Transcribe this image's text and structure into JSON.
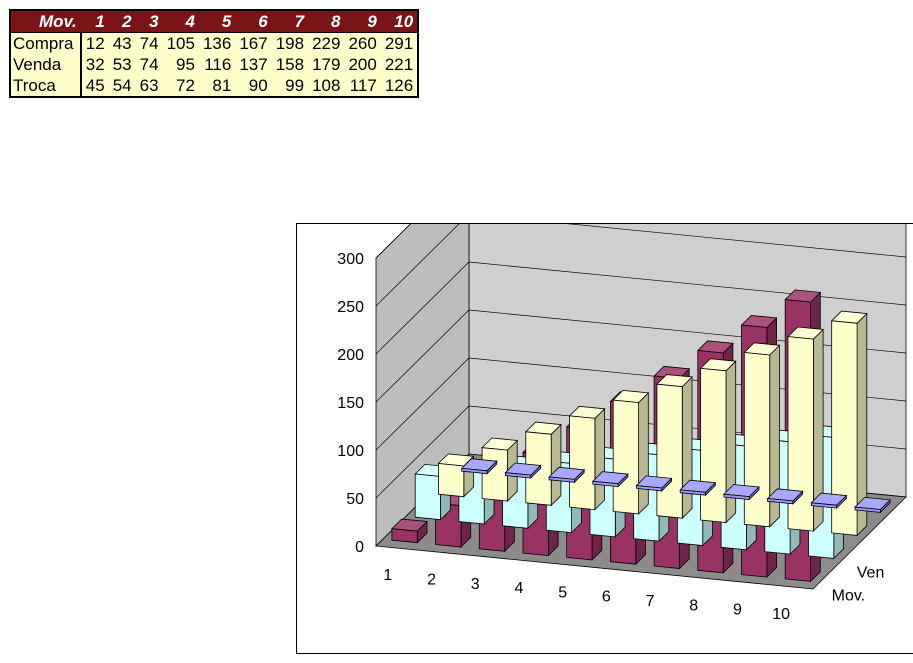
{
  "table": {
    "header_label": "Mov.",
    "columns": [
      "1",
      "2",
      "3",
      "4",
      "5",
      "6",
      "7",
      "8",
      "9",
      "10"
    ],
    "rows": [
      {
        "label": "Compra",
        "values": [
          12,
          43,
          74,
          105,
          136,
          167,
          198,
          229,
          260,
          291
        ]
      },
      {
        "label": "Venda",
        "values": [
          32,
          53,
          74,
          95,
          116,
          137,
          158,
          179,
          200,
          221
        ]
      },
      {
        "label": "Troca",
        "values": [
          45,
          54,
          63,
          72,
          81,
          90,
          99,
          108,
          117,
          126
        ]
      }
    ]
  },
  "chart_data": {
    "type": "bar",
    "style": "3d-column",
    "categories": [
      "1",
      "2",
      "3",
      "4",
      "5",
      "6",
      "7",
      "8",
      "9",
      "10"
    ],
    "series": [
      {
        "name": "Mov.",
        "values": [
          0,
          0,
          0,
          0,
          0,
          0,
          0,
          0,
          0,
          0
        ],
        "color": "#9999ff"
      },
      {
        "name": "Venda",
        "values": [
          32,
          53,
          74,
          95,
          116,
          137,
          158,
          179,
          200,
          221
        ],
        "color": "#ffffcc"
      },
      {
        "name": "Troca",
        "values": [
          45,
          54,
          63,
          72,
          81,
          90,
          99,
          108,
          117,
          126
        ],
        "color": "#ccffff"
      },
      {
        "name": "Compra",
        "values": [
          12,
          43,
          74,
          105,
          136,
          167,
          198,
          229,
          260,
          291
        ],
        "color": "#993366"
      }
    ],
    "depth_labels": [
      "Mov.",
      "Ven"
    ],
    "y_ticks": [
      "0",
      "50",
      "100",
      "150",
      "200",
      "250",
      "300"
    ],
    "ylim": [
      0,
      300
    ],
    "grid": true,
    "legend": "none"
  }
}
